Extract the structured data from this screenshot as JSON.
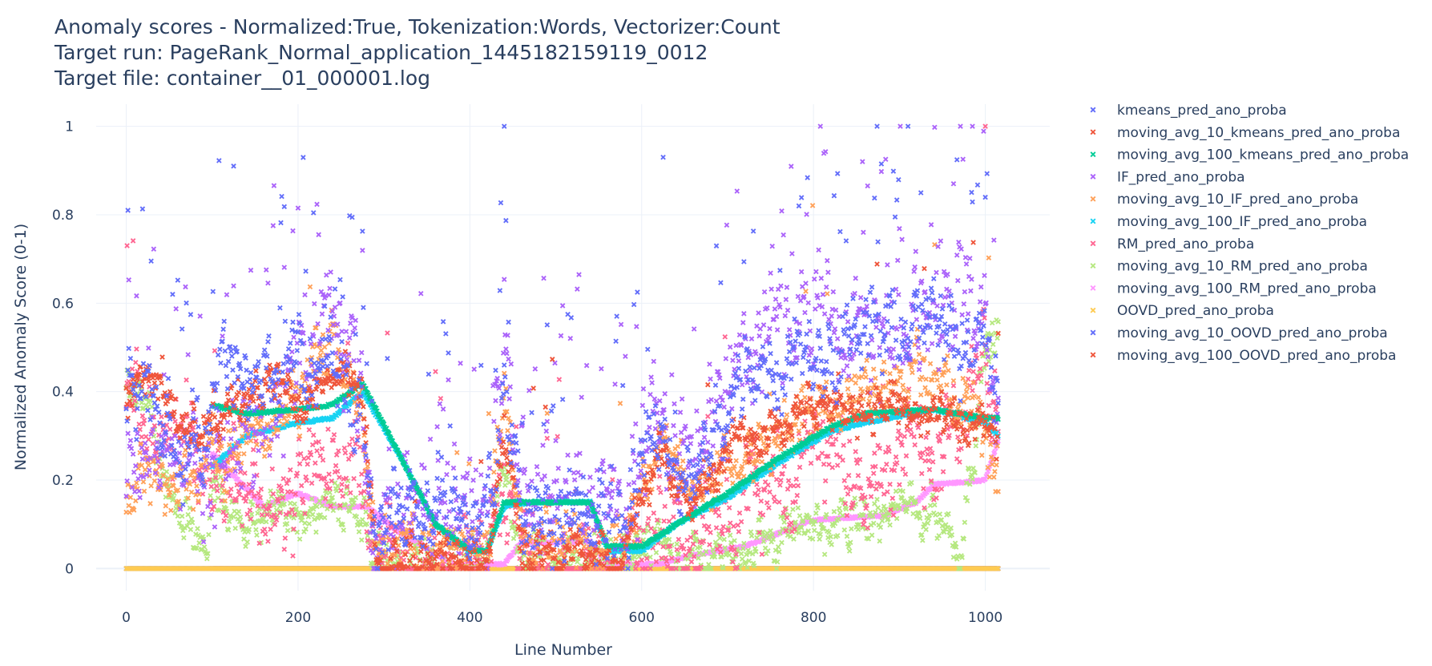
{
  "chart_data": {
    "type": "scatter",
    "title_lines": [
      "Anomaly scores - Normalized:True, Tokenization:Words, Vectorizer:Count",
      "Target run: PageRank_Normal_application_1445182159119_0012",
      "Target file: container__01_000001.log"
    ],
    "xlabel": "Line Number",
    "ylabel": "Normalized Anomaly Score (0-1)",
    "xlim": [
      -35,
      1075
    ],
    "ylim": [
      -0.05,
      1.05
    ],
    "xticks": [
      0,
      200,
      400,
      600,
      800,
      1000
    ],
    "xtick_labels": [
      "0",
      "200",
      "400",
      "600",
      "800",
      "1000"
    ],
    "yticks": [
      0,
      0.2,
      0.4,
      0.6,
      0.8,
      1
    ],
    "ytick_labels": [
      "0",
      "0.2",
      "0.4",
      "0.6",
      "0.8",
      "1"
    ],
    "grid": true,
    "legend_position": "right",
    "marker": "x",
    "n_points": 1016,
    "series": [
      {
        "name": "kmeans_pred_ano_proba",
        "color": "#636efa",
        "style": "noisy",
        "noise": 0.09,
        "spike_rate": 0.06,
        "x": [
          0,
          5,
          20,
          60,
          95,
          100,
          140,
          180,
          240,
          275,
          290,
          340,
          420,
          440,
          460,
          520,
          580,
          620,
          660,
          720,
          800,
          880,
          940,
          1000,
          1015
        ],
        "y": [
          0.3,
          0.4,
          0.35,
          0.27,
          0.3,
          0.45,
          0.42,
          0.44,
          0.46,
          0.35,
          0.11,
          0.11,
          0.12,
          0.38,
          0.13,
          0.12,
          0.11,
          0.3,
          0.2,
          0.45,
          0.5,
          0.55,
          0.55,
          0.5,
          0.45
        ]
      },
      {
        "name": "moving_avg_10_kmeans_pred_ano_proba",
        "color": "#ef553b",
        "style": "noisy",
        "noise": 0.05,
        "spike_rate": 0.01,
        "x": [
          0,
          10,
          30,
          60,
          95,
          100,
          140,
          180,
          220,
          250,
          275,
          290,
          340,
          420,
          440,
          460,
          520,
          580,
          620,
          660,
          720,
          800,
          880,
          940,
          1000,
          1015
        ],
        "y": [
          0.4,
          0.44,
          0.45,
          0.33,
          0.32,
          0.35,
          0.38,
          0.42,
          0.38,
          0.45,
          0.4,
          0.02,
          0.02,
          0.02,
          0.3,
          0.03,
          0.03,
          0.03,
          0.25,
          0.18,
          0.3,
          0.36,
          0.38,
          0.34,
          0.3,
          0.3
        ]
      },
      {
        "name": "moving_avg_100_kmeans_pred_ano_proba",
        "color": "#00cc96",
        "style": "smooth",
        "noise": 0.006,
        "spike_rate": 0,
        "x": [
          100,
          140,
          200,
          240,
          275,
          320,
          360,
          400,
          420,
          440,
          470,
          540,
          560,
          600,
          640,
          700,
          760,
          820,
          860,
          940,
          1000,
          1015
        ],
        "y": [
          0.37,
          0.35,
          0.36,
          0.37,
          0.42,
          0.25,
          0.1,
          0.04,
          0.04,
          0.15,
          0.15,
          0.15,
          0.05,
          0.05,
          0.1,
          0.17,
          0.25,
          0.32,
          0.35,
          0.36,
          0.34,
          0.34
        ]
      },
      {
        "name": "IF_pred_ano_proba",
        "color": "#ab63fa",
        "style": "noisy",
        "noise": 0.13,
        "spike_rate": 0.07,
        "x": [
          0,
          20,
          60,
          95,
          100,
          140,
          180,
          240,
          275,
          290,
          340,
          420,
          440,
          460,
          520,
          580,
          620,
          660,
          720,
          800,
          880,
          940,
          1000,
          1015
        ],
        "y": [
          0.15,
          0.28,
          0.3,
          0.2,
          0.25,
          0.3,
          0.4,
          0.55,
          0.4,
          0.12,
          0.12,
          0.12,
          0.45,
          0.15,
          0.14,
          0.12,
          0.3,
          0.25,
          0.5,
          0.55,
          0.55,
          0.6,
          0.55,
          0.4
        ]
      },
      {
        "name": "moving_avg_10_IF_pred_ano_proba",
        "color": "#ffa15a",
        "style": "noisy",
        "noise": 0.07,
        "spike_rate": 0.01,
        "x": [
          0,
          20,
          60,
          95,
          100,
          140,
          180,
          240,
          275,
          290,
          340,
          420,
          440,
          460,
          520,
          580,
          620,
          660,
          720,
          800,
          880,
          940,
          1000,
          1015
        ],
        "y": [
          0.15,
          0.2,
          0.18,
          0.24,
          0.25,
          0.3,
          0.35,
          0.5,
          0.35,
          0.04,
          0.04,
          0.04,
          0.4,
          0.05,
          0.05,
          0.05,
          0.3,
          0.18,
          0.28,
          0.35,
          0.4,
          0.45,
          0.3,
          0.22
        ]
      },
      {
        "name": "moving_avg_100_IF_pred_ano_proba",
        "color": "#19d3f3",
        "style": "smooth",
        "noise": 0.006,
        "spike_rate": 0,
        "x": [
          100,
          140,
          200,
          240,
          275,
          320,
          360,
          400,
          420,
          440,
          470,
          540,
          560,
          600,
          640,
          700,
          760,
          820,
          860,
          940,
          1000,
          1015
        ],
        "y": [
          0.23,
          0.3,
          0.33,
          0.34,
          0.4,
          0.25,
          0.1,
          0.04,
          0.04,
          0.14,
          0.15,
          0.15,
          0.04,
          0.04,
          0.1,
          0.16,
          0.24,
          0.31,
          0.33,
          0.36,
          0.33,
          0.3
        ]
      },
      {
        "name": "RM_pred_ano_proba",
        "color": "#ff6692",
        "style": "noisy",
        "noise": 0.11,
        "spike_rate": 0.02,
        "x": [
          0,
          20,
          60,
          95,
          100,
          140,
          180,
          240,
          275,
          290,
          340,
          420,
          440,
          460,
          520,
          580,
          620,
          660,
          720,
          800,
          880,
          940,
          1000,
          1015
        ],
        "y": [
          0.4,
          0.3,
          0.3,
          0.25,
          0.25,
          0.2,
          0.12,
          0.25,
          0.2,
          0.01,
          0.01,
          0.01,
          0.2,
          0.01,
          0.01,
          0.01,
          0.05,
          0.06,
          0.15,
          0.25,
          0.25,
          0.28,
          0.45,
          0.3
        ]
      },
      {
        "name": "moving_avg_10_RM_pred_ano_proba",
        "color": "#b6e880",
        "style": "noisy",
        "noise": 0.05,
        "spike_rate": 0,
        "x": [
          0,
          20,
          60,
          95,
          100,
          140,
          180,
          240,
          275,
          290,
          340,
          420,
          440,
          460,
          520,
          580,
          620,
          660,
          720,
          800,
          880,
          940,
          970,
          1000,
          1015
        ],
        "y": [
          0.4,
          0.4,
          0.1,
          0.07,
          0.2,
          0.08,
          0.12,
          0.15,
          0.13,
          0.01,
          0.01,
          0.01,
          0.25,
          0.01,
          0.01,
          0.01,
          0.05,
          0.02,
          0.05,
          0.1,
          0.12,
          0.15,
          0.03,
          0.5,
          0.55
        ]
      },
      {
        "name": "moving_avg_100_RM_pred_ano_proba",
        "color": "#ff97ff",
        "style": "smooth",
        "noise": 0.005,
        "spike_rate": 0,
        "x": [
          100,
          120,
          160,
          200,
          240,
          280,
          320,
          380,
          440,
          460,
          540,
          560,
          620,
          660,
          720,
          800,
          880,
          920,
          940,
          1000,
          1015
        ],
        "y": [
          0.26,
          0.22,
          0.14,
          0.17,
          0.14,
          0.14,
          0.08,
          0.01,
          0.01,
          0.06,
          0.06,
          0.01,
          0.01,
          0.03,
          0.05,
          0.11,
          0.12,
          0.15,
          0.19,
          0.2,
          0.29
        ]
      },
      {
        "name": "OOVD_pred_ano_proba",
        "color": "#fecb52",
        "style": "flat",
        "noise": 0,
        "spike_rate": 0,
        "x": [
          0,
          1015
        ],
        "y": [
          0,
          0
        ]
      },
      {
        "name": "moving_avg_10_OOVD_pred_ano_proba",
        "color": "#636efa",
        "style": "flat",
        "noise": 0,
        "spike_rate": 0,
        "x": [
          0,
          1015
        ],
        "y": [
          0,
          0
        ]
      },
      {
        "name": "moving_avg_100_OOVD_pred_ano_proba",
        "color": "#ef553b",
        "style": "flat",
        "noise": 0,
        "spike_rate": 0,
        "x": [
          100,
          1015
        ],
        "y": [
          0,
          0
        ]
      }
    ],
    "annotated_points": [
      {
        "series": "kmeans_pred_ano_proba",
        "x": 440,
        "y": 1
      },
      {
        "series": "kmeans_pred_ano_proba",
        "x": 910,
        "y": 1
      },
      {
        "series": "RM_pred_ano_proba",
        "x": 1000,
        "y": 1
      },
      {
        "series": "kmeans_pred_ano_proba",
        "x": 2,
        "y": 0.81
      },
      {
        "series": "RM_pred_ano_proba",
        "x": 1,
        "y": 0.73
      },
      {
        "series": "kmeans_pred_ano_proba",
        "x": 125,
        "y": 0.91
      },
      {
        "series": "kmeans_pred_ano_proba",
        "x": 625,
        "y": 0.93
      }
    ]
  }
}
